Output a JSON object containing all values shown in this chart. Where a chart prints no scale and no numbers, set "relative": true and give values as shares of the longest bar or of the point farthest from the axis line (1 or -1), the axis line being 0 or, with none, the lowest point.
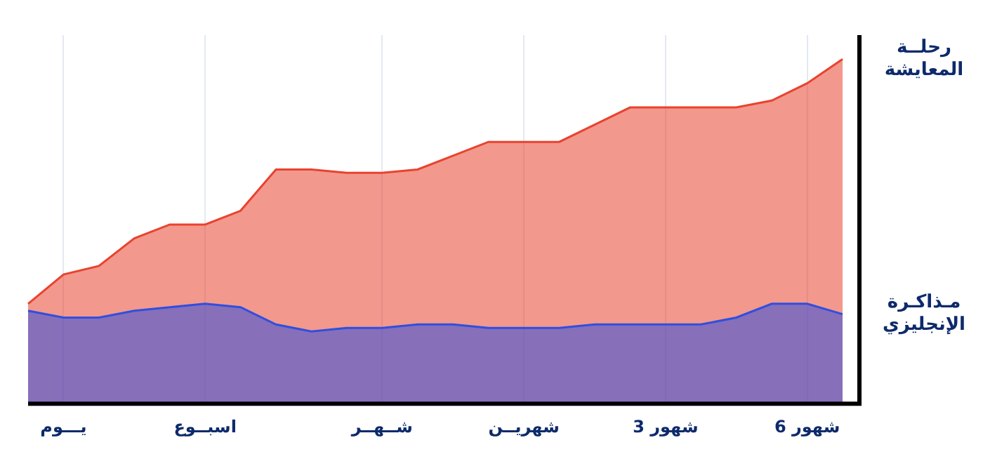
{
  "chart_data": {
    "type": "area",
    "relative": true,
    "grid": "x",
    "categories": [
      null,
      "يـــوم",
      null,
      null,
      null,
      "اسبــوع",
      null,
      null,
      null,
      null,
      "شــهــر",
      null,
      null,
      null,
      "شهريــن",
      null,
      null,
      null,
      "3 شهور",
      null,
      null,
      null,
      "6 شهور",
      null
    ],
    "series": [
      {
        "name": "رحلــة المعايشة",
        "color": "#e8432f",
        "values": [
          0.29,
          0.375,
          0.4,
          0.48,
          0.52,
          0.52,
          0.56,
          0.68,
          0.68,
          0.67,
          0.67,
          0.68,
          0.72,
          0.76,
          0.76,
          0.76,
          0.81,
          0.86,
          0.86,
          0.86,
          0.86,
          0.88,
          0.93,
          1
        ]
      },
      {
        "name": "مـذاكـرة الإنجليزي",
        "color": "#2f4fe0",
        "values": [
          0.27,
          0.25,
          0.25,
          0.27,
          0.28,
          0.29,
          0.28,
          0.23,
          0.21,
          0.22,
          0.22,
          0.23,
          0.23,
          0.22,
          0.22,
          0.22,
          0.23,
          0.23,
          0.23,
          0.23,
          0.25,
          0.29,
          0.29,
          0.26
        ]
      }
    ]
  }
}
